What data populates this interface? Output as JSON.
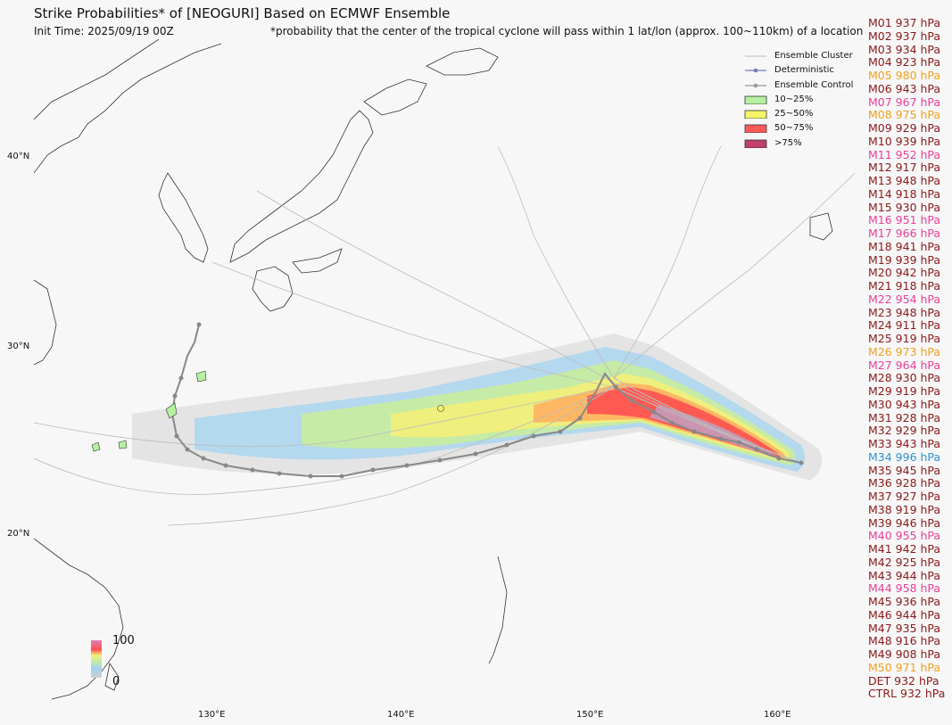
{
  "header": {
    "title": "Strike Probabilities* of [NEOGURI] Based on ECMWF Ensemble",
    "init_time": "Init Time: 2025/09/19 00Z",
    "footnote": "*probability that the center of the tropical cyclone will pass within 1 lat/lon (approx. 100~110km) of a location"
  },
  "legend": {
    "items": [
      {
        "label": "Ensemble Cluster",
        "kind": "line",
        "color": "#bbbbbb"
      },
      {
        "label": "Deterministic",
        "kind": "marker-line",
        "color": "#7a7ab8"
      },
      {
        "label": "Ensemble Control",
        "kind": "marker-line",
        "color": "#999999"
      },
      {
        "label": "10~25%",
        "kind": "patch",
        "color": "#b6f0a0"
      },
      {
        "label": "25~50%",
        "kind": "patch",
        "color": "#f5f56a"
      },
      {
        "label": "50~75%",
        "kind": "patch",
        "color": "#ff5a5a"
      },
      {
        "label": ">75%",
        "kind": "patch",
        "color": "#c0406a"
      }
    ]
  },
  "colorbar": {
    "max_label": "100",
    "min_label": "0"
  },
  "axes": {
    "lat_labels": [
      "40°N",
      "30°N",
      "20°N"
    ],
    "lon_labels": [
      "130°E",
      "140°E",
      "150°E",
      "160°E"
    ]
  },
  "colors": {
    "ocean": "#f7f7f7",
    "coast": "#333333",
    "track": "#888888",
    "strong": "#8b1a1a",
    "moderate": "#e8409a",
    "weak": "#f0a020",
    "minimal": "#3090d0"
  },
  "members": [
    {
      "label": "M01 937 hPa",
      "color": "#8b1a1a"
    },
    {
      "label": "M02 937 hPa",
      "color": "#8b1a1a"
    },
    {
      "label": "M03 934 hPa",
      "color": "#8b1a1a"
    },
    {
      "label": "M04 923 hPa",
      "color": "#8b1a1a"
    },
    {
      "label": "M05 980 hPa",
      "color": "#f0a020"
    },
    {
      "label": "M06 943 hPa",
      "color": "#8b1a1a"
    },
    {
      "label": "M07 967 hPa",
      "color": "#e8409a"
    },
    {
      "label": "M08 975 hPa",
      "color": "#f0a020"
    },
    {
      "label": "M09 929 hPa",
      "color": "#8b1a1a"
    },
    {
      "label": "M10 939 hPa",
      "color": "#8b1a1a"
    },
    {
      "label": "M11 952 hPa",
      "color": "#e8409a"
    },
    {
      "label": "M12 917 hPa",
      "color": "#8b1a1a"
    },
    {
      "label": "M13 948 hPa",
      "color": "#8b1a1a"
    },
    {
      "label": "M14 918 hPa",
      "color": "#8b1a1a"
    },
    {
      "label": "M15 930 hPa",
      "color": "#8b1a1a"
    },
    {
      "label": "M16 951 hPa",
      "color": "#e8409a"
    },
    {
      "label": "M17 966 hPa",
      "color": "#e8409a"
    },
    {
      "label": "M18 941 hPa",
      "color": "#8b1a1a"
    },
    {
      "label": "M19 939 hPa",
      "color": "#8b1a1a"
    },
    {
      "label": "M20 942 hPa",
      "color": "#8b1a1a"
    },
    {
      "label": "M21 918 hPa",
      "color": "#8b1a1a"
    },
    {
      "label": "M22 954 hPa",
      "color": "#e8409a"
    },
    {
      "label": "M23 948 hPa",
      "color": "#8b1a1a"
    },
    {
      "label": "M24 911 hPa",
      "color": "#8b1a1a"
    },
    {
      "label": "M25 919 hPa",
      "color": "#8b1a1a"
    },
    {
      "label": "M26 973 hPa",
      "color": "#f0a020"
    },
    {
      "label": "M27 964 hPa",
      "color": "#e8409a"
    },
    {
      "label": "M28 930 hPa",
      "color": "#8b1a1a"
    },
    {
      "label": "M29 919 hPa",
      "color": "#8b1a1a"
    },
    {
      "label": "M30 943 hPa",
      "color": "#8b1a1a"
    },
    {
      "label": "M31 928 hPa",
      "color": "#8b1a1a"
    },
    {
      "label": "M32 929 hPa",
      "color": "#8b1a1a"
    },
    {
      "label": "M33 943 hPa",
      "color": "#8b1a1a"
    },
    {
      "label": "M34 996 hPa",
      "color": "#3090d0"
    },
    {
      "label": "M35 945 hPa",
      "color": "#8b1a1a"
    },
    {
      "label": "M36 928 hPa",
      "color": "#8b1a1a"
    },
    {
      "label": "M37 927 hPa",
      "color": "#8b1a1a"
    },
    {
      "label": "M38 919 hPa",
      "color": "#8b1a1a"
    },
    {
      "label": "M39 946 hPa",
      "color": "#8b1a1a"
    },
    {
      "label": "M40 955 hPa",
      "color": "#e8409a"
    },
    {
      "label": "M41 942 hPa",
      "color": "#8b1a1a"
    },
    {
      "label": "M42 925 hPa",
      "color": "#8b1a1a"
    },
    {
      "label": "M43 944 hPa",
      "color": "#8b1a1a"
    },
    {
      "label": "M44 958 hPa",
      "color": "#e8409a"
    },
    {
      "label": "M45 936 hPa",
      "color": "#8b1a1a"
    },
    {
      "label": "M46 944 hPa",
      "color": "#8b1a1a"
    },
    {
      "label": "M47 935 hPa",
      "color": "#8b1a1a"
    },
    {
      "label": "M48 916 hPa",
      "color": "#8b1a1a"
    },
    {
      "label": "M49 908 hPa",
      "color": "#8b1a1a"
    },
    {
      "label": "M50 971 hPa",
      "color": "#f0a020"
    },
    {
      "label": "DET 932 hPa",
      "color": "#8b1a1a"
    },
    {
      "label": "CTRL 932 hPa",
      "color": "#8b1a1a"
    }
  ]
}
